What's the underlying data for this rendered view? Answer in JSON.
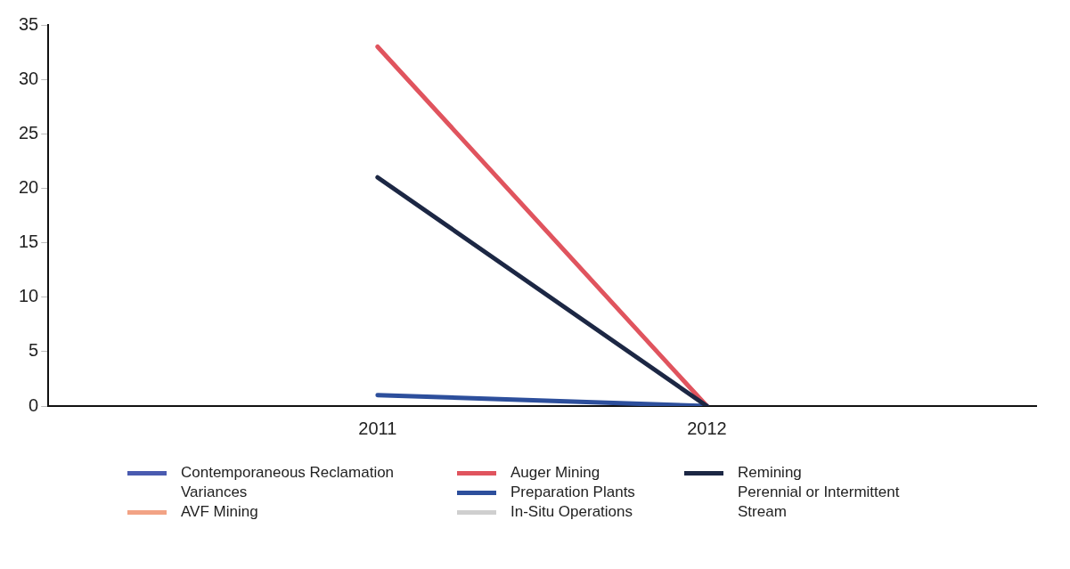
{
  "chart_data": {
    "type": "line",
    "categories": [
      null,
      "2011",
      "2012",
      null
    ],
    "ylim": [
      0,
      35
    ],
    "yticks": [
      0,
      5,
      10,
      15,
      20,
      25,
      30,
      35
    ],
    "grid": false,
    "legend": "bottom",
    "marker": "none",
    "line_style": "solid",
    "series": [
      {
        "name": "Contemporaneous Reclamation Variances",
        "color": "#4a5bb0",
        "values": [
          null,
          null,
          null,
          null
        ]
      },
      {
        "name": "AVF Mining",
        "color": "#f2a385",
        "values": [
          null,
          null,
          null,
          null
        ]
      },
      {
        "name": "Auger Mining",
        "color": "#e0545e",
        "values": [
          null,
          33,
          0,
          null
        ]
      },
      {
        "name": "Preparation Plants",
        "color": "#2d4f9c",
        "values": [
          null,
          1,
          0,
          null
        ]
      },
      {
        "name": "In-Situ Operations",
        "color": "#cfcfcf",
        "values": [
          null,
          null,
          null,
          null
        ]
      },
      {
        "name": "Remining",
        "color": "#1c2744",
        "values": [
          null,
          21,
          0,
          null
        ]
      },
      {
        "name": "Perennial or Intermittent Stream",
        "values": [
          null,
          null,
          null,
          null
        ]
      }
    ]
  }
}
